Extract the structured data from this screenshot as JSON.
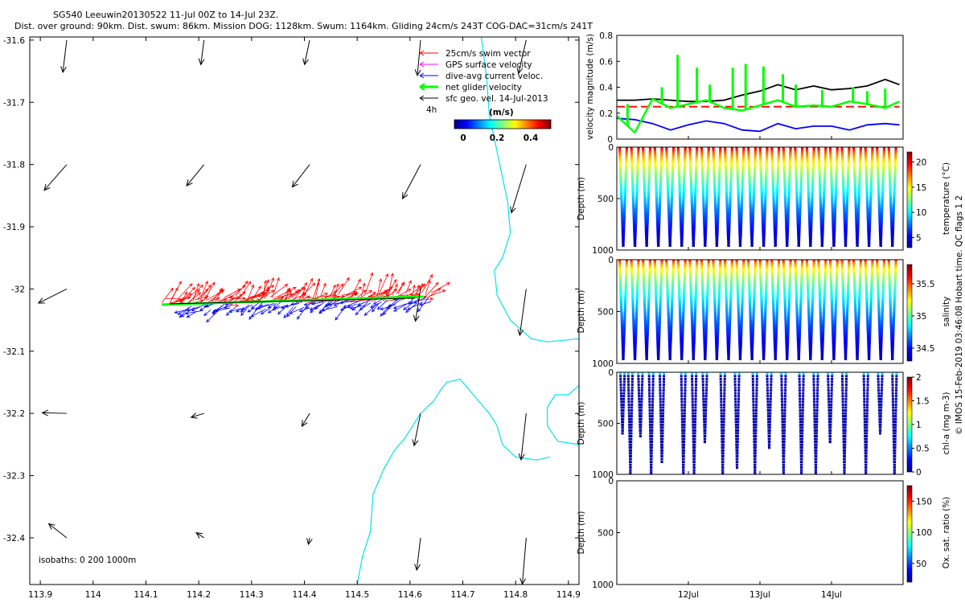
{
  "title_line1": "SG540 Leeuwin20130522 11-Jul 00Z to 14-Jul 23Z.",
  "title_line2": "Dist. over ground: 90km. Dist. swum: 86km. Mission DOG: 1128km. Swum: 1164km. Gliding 24cm/s 243T COG-DAC=31cm/s 241T",
  "legend": {
    "items": [
      {
        "label": "25cm/s swim vector",
        "color": "#ff0000"
      },
      {
        "label": "GPS surface velocity",
        "color": "#ff00ff"
      },
      {
        "label": "dive-avg current veloc.",
        "color": "#0000ff"
      },
      {
        "label": "net glider velocity",
        "color": "#00ff00"
      },
      {
        "label": "sfc geo. vel. 14-Jul-2013",
        "color": "#000000"
      }
    ],
    "marker_label": "4h"
  },
  "speed_colorbar": {
    "title": "(m/s)",
    "ticks": [
      "0",
      "0.2",
      "0.4"
    ]
  },
  "isobaths_label": "isobaths: 0   200   1000m",
  "credit": "© IMOS 15-Feb-2019 03:46:08 Hobart time. QC flags 1  2",
  "chart_data": [
    {
      "type": "map",
      "xlim": [
        113.88,
        114.92
      ],
      "ylim": [
        -32.475,
        -31.595
      ],
      "xticks": [
        "113.9",
        "114",
        "114.1",
        "114.2",
        "114.3",
        "114.4",
        "114.5",
        "114.6",
        "114.7",
        "114.8",
        "114.9"
      ],
      "yticks": [
        "-31.6",
        "-31.7",
        "-31.8",
        "-31.9",
        "-32",
        "-32.1",
        "-32.2",
        "-32.3",
        "-32.4"
      ],
      "coastline_color": "#00e5ee",
      "track_lat": -32.02,
      "track_lon_range": [
        114.13,
        114.64
      ],
      "geo_vectors": [
        {
          "lon": 113.95,
          "lat": -31.6,
          "u": -0.06,
          "v": -0.5
        },
        {
          "lon": 114.21,
          "lat": -31.6,
          "u": -0.05,
          "v": -0.38
        },
        {
          "lon": 114.41,
          "lat": -31.6,
          "u": -0.08,
          "v": -0.38
        },
        {
          "lon": 114.62,
          "lat": -31.6,
          "u": -0.05,
          "v": -0.55
        },
        {
          "lon": 114.82,
          "lat": -31.6,
          "u": -0.12,
          "v": -0.52
        },
        {
          "lon": 113.95,
          "lat": -31.8,
          "u": -0.35,
          "v": -0.4
        },
        {
          "lon": 114.21,
          "lat": -31.8,
          "u": -0.27,
          "v": -0.33
        },
        {
          "lon": 114.41,
          "lat": -31.8,
          "u": -0.27,
          "v": -0.35
        },
        {
          "lon": 114.62,
          "lat": -31.8,
          "u": -0.28,
          "v": -0.53
        },
        {
          "lon": 114.82,
          "lat": -31.8,
          "u": -0.23,
          "v": -0.75
        },
        {
          "lon": 113.95,
          "lat": -32.0,
          "u": -0.44,
          "v": -0.22
        },
        {
          "lon": 114.62,
          "lat": -32.0,
          "u": -0.08,
          "v": -0.5
        },
        {
          "lon": 114.82,
          "lat": -32.0,
          "u": -0.1,
          "v": -0.72
        },
        {
          "lon": 113.95,
          "lat": -32.2,
          "u": -0.38,
          "v": 0.01
        },
        {
          "lon": 114.21,
          "lat": -32.2,
          "u": -0.2,
          "v": -0.06
        },
        {
          "lon": 114.41,
          "lat": -32.2,
          "u": -0.12,
          "v": -0.2
        },
        {
          "lon": 114.62,
          "lat": -32.2,
          "u": -0.1,
          "v": -0.5
        },
        {
          "lon": 114.82,
          "lat": -32.2,
          "u": -0.08,
          "v": -0.72
        },
        {
          "lon": 113.95,
          "lat": -32.4,
          "u": -0.28,
          "v": 0.22
        },
        {
          "lon": 114.21,
          "lat": -32.4,
          "u": -0.12,
          "v": 0.08
        },
        {
          "lon": 114.41,
          "lat": -32.4,
          "u": -0.02,
          "v": -0.1
        },
        {
          "lon": 114.62,
          "lat": -32.4,
          "u": -0.06,
          "v": -0.5
        },
        {
          "lon": 114.82,
          "lat": -32.4,
          "u": -0.06,
          "v": -0.72
        }
      ]
    },
    {
      "type": "line",
      "ylabel": "velocity magnitude (m/s)",
      "ylim": [
        0,
        0.8
      ],
      "yticks": [
        "0",
        "0.2",
        "0.4",
        "0.6",
        "0.8"
      ],
      "x": [
        11.0,
        11.25,
        11.5,
        11.75,
        12.0,
        12.25,
        12.5,
        12.75,
        13.0,
        13.25,
        13.5,
        13.75,
        14.0,
        14.25,
        14.5,
        14.75,
        14.95
      ],
      "series": [
        {
          "name": "sfc geo. vel.",
          "color": "#000000",
          "values": [
            0.3,
            0.3,
            0.31,
            0.3,
            0.29,
            0.29,
            0.3,
            0.34,
            0.37,
            0.42,
            0.38,
            0.41,
            0.38,
            0.39,
            0.41,
            0.46,
            0.42
          ]
        },
        {
          "name": "25cm/s swim vector",
          "color": "#ff0000",
          "values": [
            0.25,
            0.25,
            0.25,
            0.25,
            0.25,
            0.25,
            0.25,
            0.25,
            0.25,
            0.25,
            0.25,
            0.25,
            0.25,
            0.25,
            0.25,
            0.25,
            0.25
          ]
        },
        {
          "name": "dive-avg current veloc.",
          "color": "#0000ff",
          "values": [
            0.16,
            0.15,
            0.12,
            0.07,
            0.11,
            0.14,
            0.12,
            0.07,
            0.06,
            0.12,
            0.08,
            0.1,
            0.1,
            0.07,
            0.11,
            0.12,
            0.11
          ]
        },
        {
          "name": "net glider velocity",
          "color": "#00ff00",
          "values": [
            0.18,
            0.05,
            0.31,
            0.24,
            0.27,
            0.3,
            0.24,
            0.22,
            0.26,
            0.3,
            0.25,
            0.26,
            0.25,
            0.29,
            0.27,
            0.24,
            0.29
          ]
        }
      ],
      "spike_days": [
        11.15,
        11.5,
        11.63,
        11.85,
        12.12,
        12.3,
        12.62,
        12.8,
        13.05,
        13.32,
        13.5,
        13.87,
        14.3,
        14.5,
        14.75
      ],
      "spike_peaks": [
        0.27,
        0.31,
        0.4,
        0.65,
        0.55,
        0.42,
        0.55,
        0.58,
        0.56,
        0.5,
        0.42,
        0.38,
        0.4,
        0.37,
        0.39
      ]
    },
    {
      "type": "scatter",
      "ylabel": "Depth (m)",
      "ylim": [
        1000,
        0
      ],
      "yticks": [
        "0",
        "500",
        "1000"
      ],
      "variable": "temperature",
      "cbar_label": "temperature (°C)",
      "cbar_ticks": [
        "5",
        "10",
        "15",
        "20"
      ],
      "cbar_range": [
        3,
        22
      ],
      "profile_pattern": "full_dives_1000m"
    },
    {
      "type": "scatter",
      "ylabel": "Depth (m)",
      "ylim": [
        1000,
        0
      ],
      "yticks": [
        "0",
        "500",
        "1000"
      ],
      "variable": "salinity",
      "cbar_label": "salinity",
      "cbar_ticks": [
        "34.5",
        "35",
        "35.5"
      ],
      "cbar_range": [
        34.3,
        35.8
      ],
      "profile_pattern": "full_dives_1000m"
    },
    {
      "type": "scatter",
      "ylabel": "Depth (m)",
      "ylim": [
        1000,
        0
      ],
      "yticks": [
        "0",
        "500",
        "1000"
      ],
      "variable": "chl-a",
      "cbar_label": "chl-a (mg m-3)",
      "cbar_ticks": [
        "0",
        "0.5",
        "1",
        "1.5",
        "2"
      ],
      "cbar_range": [
        0,
        2
      ],
      "profile_pattern": "sparse_dives"
    },
    {
      "type": "scatter",
      "ylabel": "Depth (m)",
      "ylim": [
        1000,
        0
      ],
      "yticks": [
        "0",
        "500",
        "1000"
      ],
      "variable": "oxygen saturation",
      "cbar_label": "Ox. sat. ratio (%)",
      "cbar_ticks": [
        "50",
        "100",
        "150"
      ],
      "cbar_range": [
        20,
        175
      ],
      "profile_pattern": "empty"
    },
    {
      "type": "timeaxis",
      "xlim": [
        11.0,
        15.0
      ],
      "ticks": [
        {
          "day": 12,
          "label": "12Jul"
        },
        {
          "day": 13,
          "label": "13Jul"
        },
        {
          "day": 14,
          "label": "14Jul"
        }
      ]
    }
  ]
}
